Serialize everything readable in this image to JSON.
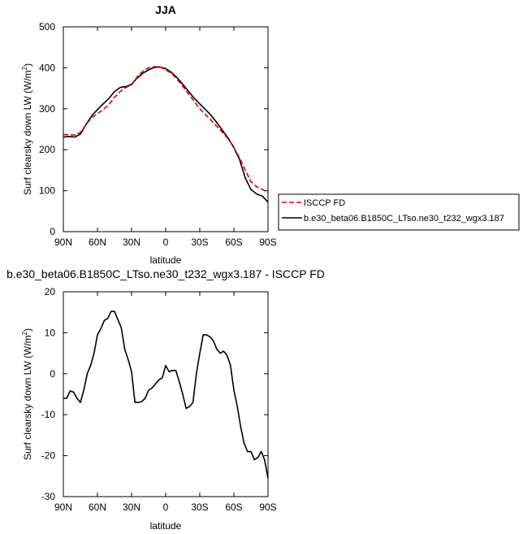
{
  "chart_data": [
    {
      "type": "line",
      "title": "JJA",
      "xlabel": "latitude",
      "ylabel": "Surf clearsky down LW (W/m",
      "ylabel_sup": "2",
      "ylabel_close": ")",
      "xlim": [
        90,
        -90
      ],
      "ylim": [
        0,
        500
      ],
      "xticks": [
        {
          "value": 90,
          "label": "90N"
        },
        {
          "value": 60,
          "label": "60N"
        },
        {
          "value": 30,
          "label": "30N"
        },
        {
          "value": 0,
          "label": "0"
        },
        {
          "value": -30,
          "label": "30S"
        },
        {
          "value": -60,
          "label": "60S"
        },
        {
          "value": -90,
          "label": "90S"
        }
      ],
      "yticks": [
        0,
        100,
        200,
        300,
        400,
        500
      ],
      "legend": "right, boxed",
      "series": [
        {
          "name": "ISCCP FD",
          "color": "#dd0000",
          "dash": "dashed",
          "x": [
            90,
            80,
            75,
            70,
            65,
            60,
            55,
            50,
            45,
            40,
            35,
            30,
            25,
            20,
            15,
            10,
            5,
            0,
            -5,
            -10,
            -15,
            -20,
            -25,
            -30,
            -35,
            -40,
            -45,
            -50,
            -55,
            -60,
            -65,
            -70,
            -75,
            -80,
            -85,
            -90
          ],
          "y": [
            237,
            236,
            242,
            262,
            278,
            288,
            298,
            310,
            328,
            342,
            352,
            358,
            378,
            392,
            400,
            403,
            402,
            395,
            387,
            372,
            355,
            337,
            318,
            300,
            286,
            272,
            257,
            242,
            226,
            206,
            180,
            150,
            122,
            110,
            103,
            96
          ]
        },
        {
          "name": "b.e30_beta06.B1850C_LTso.ne30_t232_wgx3.187",
          "color": "#000000",
          "dash": "solid",
          "x": [
            90,
            85,
            80,
            75,
            70,
            65,
            60,
            55,
            50,
            45,
            40,
            35,
            30,
            25,
            20,
            15,
            10,
            5,
            0,
            -5,
            -10,
            -15,
            -20,
            -25,
            -30,
            -35,
            -40,
            -45,
            -50,
            -55,
            -60,
            -65,
            -70,
            -75,
            -80,
            -85,
            -90
          ],
          "y": [
            231,
            232,
            231,
            238,
            262,
            283,
            298,
            312,
            325,
            342,
            352,
            354,
            360,
            375,
            387,
            395,
            401,
            402,
            398,
            389,
            376,
            360,
            343,
            326,
            312,
            298,
            284,
            266,
            247,
            228,
            205,
            176,
            131,
            103,
            92,
            87,
            72
          ]
        }
      ]
    },
    {
      "type": "line",
      "title": "b.e30_beta06.B1850C_LTso.ne30_t232_wgx3.187 - ISCCP FD",
      "xlabel": "latitude",
      "ylabel": "Surf clearsky down LW (W/m",
      "ylabel_sup": "2",
      "ylabel_close": ")",
      "xlim": [
        90,
        -90
      ],
      "ylim": [
        -30,
        20
      ],
      "xticks": [
        {
          "value": 90,
          "label": "90N"
        },
        {
          "value": 60,
          "label": "60N"
        },
        {
          "value": 30,
          "label": "30N"
        },
        {
          "value": 0,
          "label": "0"
        },
        {
          "value": -30,
          "label": "30S"
        },
        {
          "value": -60,
          "label": "60S"
        },
        {
          "value": -90,
          "label": "90S"
        }
      ],
      "yticks": [
        -30,
        -20,
        -10,
        0,
        10,
        20
      ],
      "series": [
        {
          "color": "#000000",
          "dash": "solid",
          "x": [
            90,
            87,
            84,
            81,
            78,
            75,
            72,
            69,
            66,
            63,
            60,
            57,
            54,
            51,
            48,
            45,
            42,
            39,
            36,
            33,
            30,
            27,
            24,
            21,
            18,
            15,
            12,
            9,
            6,
            3,
            0,
            -3,
            -6,
            -9,
            -12,
            -15,
            -18,
            -21,
            -24,
            -27,
            -30,
            -33,
            -36,
            -39,
            -42,
            -45,
            -48,
            -51,
            -54,
            -57,
            -60,
            -63,
            -66,
            -69,
            -72,
            -75,
            -78,
            -81,
            -84,
            -87,
            -90
          ],
          "y": [
            -6,
            -6,
            -4.2,
            -4.5,
            -6,
            -7,
            -4,
            0,
            2,
            5,
            9.5,
            11,
            13,
            13.5,
            15.2,
            15.2,
            13.2,
            11.2,
            6,
            3.5,
            0.5,
            -7,
            -7,
            -6.8,
            -6,
            -4,
            -3.5,
            -2.5,
            -1.5,
            -1,
            2,
            0.5,
            0.8,
            0.8,
            -2,
            -5,
            -8.5,
            -8,
            -7,
            0,
            5,
            9.5,
            9.5,
            9,
            8,
            6,
            5,
            5.5,
            4.5,
            2,
            -4,
            -8,
            -13,
            -17,
            -19,
            -19,
            -21,
            -20.5,
            -19,
            -21,
            -25.5
          ]
        }
      ]
    }
  ]
}
